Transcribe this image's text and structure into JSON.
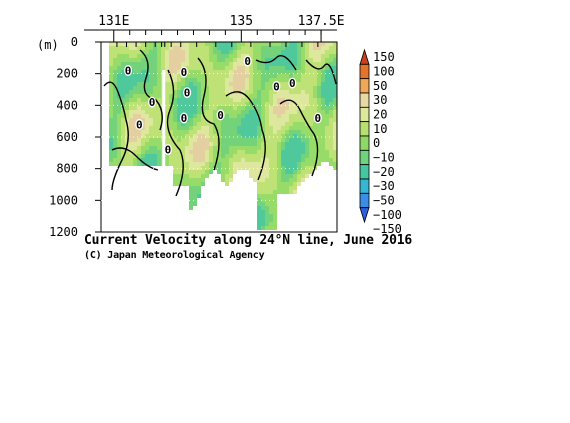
{
  "chart_data": {
    "type": "heatmap",
    "title": "Current Velocity along 24°N line, June 2016",
    "credit": "(C) Japan Meteorological Agency",
    "ylabel": "(m)",
    "x_axis": {
      "ticks": [
        {
          "value": 131,
          "label": "131E"
        },
        {
          "value": 135,
          "label": "135"
        },
        {
          "value": 137.5,
          "label": "137.5E"
        }
      ],
      "range": [
        130.6,
        138.0
      ]
    },
    "y_axis": {
      "ticks": [
        0,
        200,
        400,
        600,
        800,
        1000,
        1200
      ],
      "range": [
        0,
        1200
      ],
      "inverted": true
    },
    "contour_labels": [
      {
        "x": 131.45,
        "y": 180,
        "text": "0"
      },
      {
        "x": 132.2,
        "y": 380,
        "text": "0"
      },
      {
        "x": 131.8,
        "y": 520,
        "text": "0"
      },
      {
        "x": 132.7,
        "y": 680,
        "text": "0"
      },
      {
        "x": 133.2,
        "y": 190,
        "text": "0"
      },
      {
        "x": 133.3,
        "y": 320,
        "text": "0"
      },
      {
        "x": 133.2,
        "y": 480,
        "text": "0"
      },
      {
        "x": 134.35,
        "y": 460,
        "text": "0"
      },
      {
        "x": 135.2,
        "y": 120,
        "text": "0"
      },
      {
        "x": 136.1,
        "y": 280,
        "text": "0"
      },
      {
        "x": 136.6,
        "y": 260,
        "text": "0"
      },
      {
        "x": 137.4,
        "y": 480,
        "text": "0"
      }
    ],
    "colorbar": {
      "labels": [
        "150",
        "100",
        "50",
        "30",
        "20",
        "10",
        "0",
        "−10",
        "−20",
        "−30",
        "−50",
        "−100",
        "−150"
      ],
      "colors": [
        "#c8401c",
        "#e4742c",
        "#f0a858",
        "#e8d9a4",
        "#dce89c",
        "#b7e070",
        "#8ed865",
        "#6fd27c",
        "#45c7a0",
        "#36b6d2",
        "#3a8fe4",
        "#2f5fdc"
      ]
    }
  }
}
